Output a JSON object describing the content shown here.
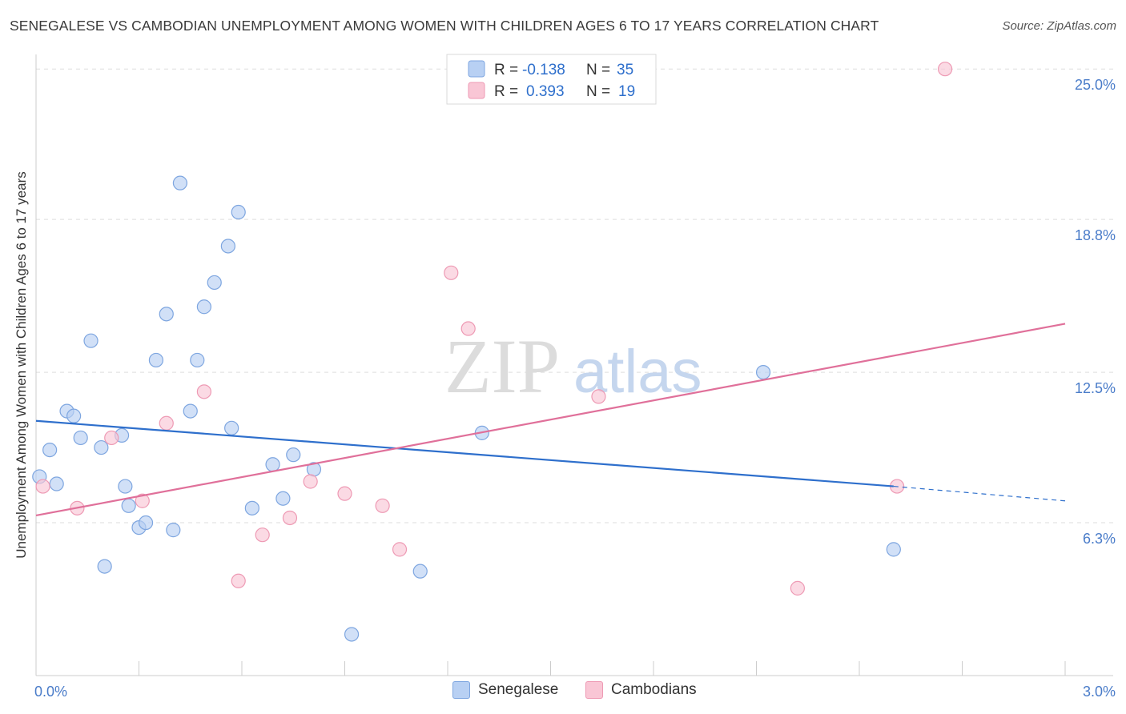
{
  "title": "SENEGALESE VS CAMBODIAN UNEMPLOYMENT AMONG WOMEN WITH CHILDREN AGES 6 TO 17 YEARS CORRELATION CHART",
  "source": "Source: ZipAtlas.com",
  "watermark": {
    "zip": "ZIP",
    "atlas": "atlas"
  },
  "legend_box": [
    {
      "r_label": "R =",
      "r_value": "-0.138",
      "n_label": "N =",
      "n_value": "35"
    },
    {
      "r_label": "R =",
      "r_value": "0.393",
      "n_label": "N =",
      "n_value": "19"
    }
  ],
  "bottom_legend": [
    "Senegalese",
    "Cambodians"
  ],
  "chart_data": {
    "type": "scatter",
    "title": "SENEGALESE VS CAMBODIAN UNEMPLOYMENT AMONG WOMEN WITH CHILDREN AGES 6 TO 17 YEARS CORRELATION CHART",
    "xlabel": "",
    "ylabel": "Unemployment Among Women with Children Ages 6 to 17 years",
    "x_tick_labels": [
      "0.0%",
      "3.0%"
    ],
    "y_tick_labels": [
      "6.3%",
      "12.5%",
      "18.8%",
      "25.0%"
    ],
    "y_ticks": [
      6.3,
      12.5,
      18.8,
      25.0
    ],
    "xlim": [
      0,
      3.0
    ],
    "ylim": [
      0,
      25.6
    ],
    "grid": true,
    "legend_position": "top-center",
    "colors": {
      "Senegalese": {
        "fill": "#b8d0f3",
        "stroke": "#7ea6e0",
        "line": "#2e6fcc"
      },
      "Cambodians": {
        "fill": "#f9c6d5",
        "stroke": "#ee9ab4",
        "line": "#e0709a"
      }
    },
    "series": [
      {
        "name": "Senegalese",
        "R": -0.138,
        "N": 35,
        "trend": {
          "x": [
            0.0,
            2.5
          ],
          "y": [
            10.5,
            7.8
          ],
          "dashed_to": [
            3.0,
            7.2
          ]
        },
        "points": [
          [
            0.01,
            8.2
          ],
          [
            0.04,
            9.3
          ],
          [
            0.06,
            7.9
          ],
          [
            0.09,
            10.9
          ],
          [
            0.11,
            10.7
          ],
          [
            0.13,
            9.8
          ],
          [
            0.16,
            13.8
          ],
          [
            0.19,
            9.4
          ],
          [
            0.2,
            4.5
          ],
          [
            0.26,
            7.8
          ],
          [
            0.27,
            7.0
          ],
          [
            0.3,
            6.1
          ],
          [
            0.32,
            6.3
          ],
          [
            0.35,
            13.0
          ],
          [
            0.38,
            14.9
          ],
          [
            0.4,
            6.0
          ],
          [
            0.42,
            20.3
          ],
          [
            0.45,
            10.9
          ],
          [
            0.47,
            13.0
          ],
          [
            0.49,
            15.2
          ],
          [
            0.52,
            16.2
          ],
          [
            0.56,
            17.7
          ],
          [
            0.57,
            10.2
          ],
          [
            0.59,
            19.1
          ],
          [
            0.63,
            6.9
          ],
          [
            0.69,
            8.7
          ],
          [
            0.72,
            7.3
          ],
          [
            0.75,
            9.1
          ],
          [
            0.81,
            8.5
          ],
          [
            0.92,
            1.7
          ],
          [
            1.12,
            4.3
          ],
          [
            1.3,
            10.0
          ],
          [
            2.12,
            12.5
          ],
          [
            2.5,
            5.2
          ],
          [
            0.25,
            9.9
          ]
        ]
      },
      {
        "name": "Cambodians",
        "R": 0.393,
        "N": 19,
        "trend": {
          "x": [
            0.0,
            3.0
          ],
          "y": [
            6.6,
            14.5
          ]
        },
        "points": [
          [
            0.02,
            7.8
          ],
          [
            0.12,
            6.9
          ],
          [
            0.22,
            9.8
          ],
          [
            0.31,
            7.2
          ],
          [
            0.38,
            10.4
          ],
          [
            0.49,
            11.7
          ],
          [
            0.59,
            3.9
          ],
          [
            0.66,
            5.8
          ],
          [
            0.74,
            6.5
          ],
          [
            0.8,
            8.0
          ],
          [
            0.9,
            7.5
          ],
          [
            1.01,
            7.0
          ],
          [
            1.06,
            5.2
          ],
          [
            1.21,
            16.6
          ],
          [
            1.26,
            14.3
          ],
          [
            1.64,
            11.5
          ],
          [
            2.22,
            3.6
          ],
          [
            2.51,
            7.8
          ],
          [
            2.65,
            25.0
          ]
        ]
      }
    ]
  }
}
